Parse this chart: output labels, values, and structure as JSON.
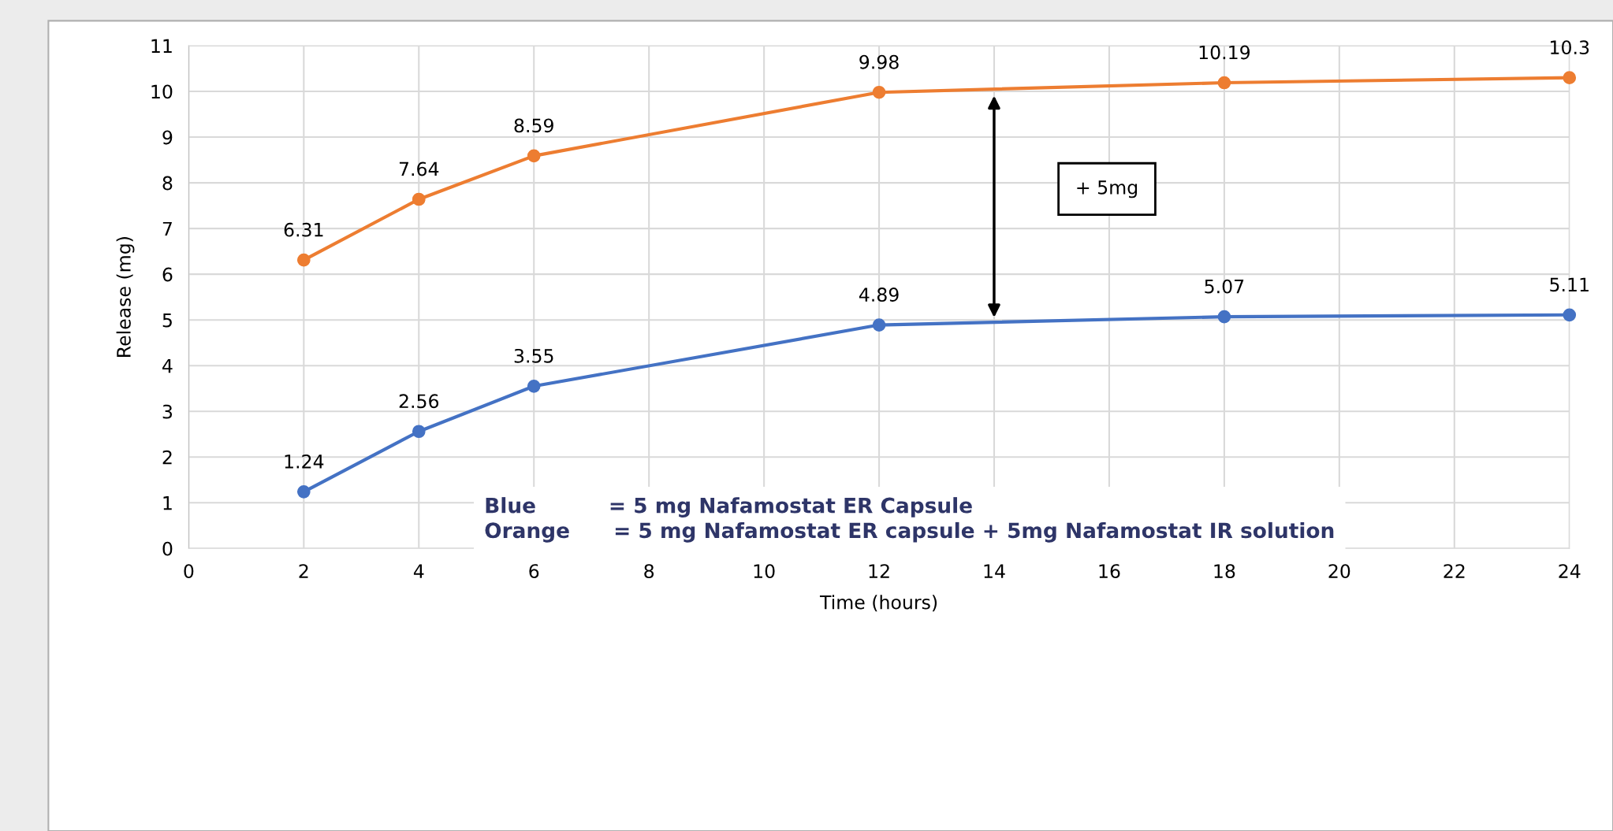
{
  "chart_data": {
    "type": "line",
    "xlabel": "Time (hours)",
    "ylabel": "Release (mg)",
    "x": [
      2,
      4,
      6,
      12,
      18,
      24
    ],
    "series": [
      {
        "color": "#4472c4",
        "values": [
          1.24,
          2.56,
          3.55,
          4.89,
          5.07,
          5.11
        ]
      },
      {
        "color": "#ed7d31",
        "values": [
          6.31,
          7.64,
          8.59,
          9.98,
          10.19,
          10.3
        ]
      }
    ],
    "xlim": [
      0,
      24
    ],
    "xticks": [
      0,
      2,
      4,
      6,
      8,
      10,
      12,
      14,
      16,
      18,
      20,
      22,
      24
    ],
    "ylim": [
      0,
      11
    ],
    "yticks": [
      0,
      1,
      2,
      3,
      4,
      5,
      6,
      7,
      8,
      9,
      10,
      11
    ],
    "grid": true,
    "marker": "circle",
    "line_style": "solid",
    "data_labels": true,
    "annotations": [
      "+ 5mg",
      "Blue          = 5 mg Nafamostat ER Capsule",
      "Orange      = 5 mg Nafamostat ER capsule + 5mg Nafamostat IR solution"
    ]
  }
}
